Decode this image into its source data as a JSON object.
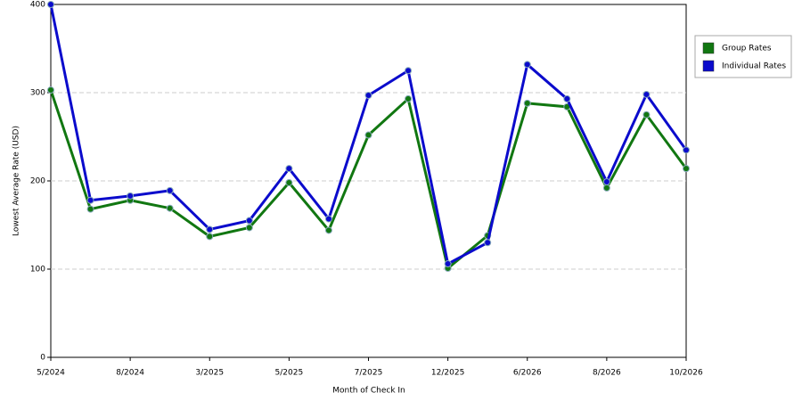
{
  "chart_data": {
    "type": "line",
    "x_label": "Month of Check In",
    "y_label": "Lowest Average Rate (USD)",
    "categories": [
      "5/2024",
      null,
      "8/2024",
      null,
      "3/2025",
      null,
      "5/2025",
      null,
      "7/2025",
      null,
      "12/2025",
      null,
      "6/2026",
      null,
      "8/2026",
      null,
      "10/2026"
    ],
    "series": [
      {
        "name": "Group Rates",
        "color": "#117711",
        "values": [
          303,
          168,
          178,
          169,
          137,
          147,
          198,
          144,
          252,
          293,
          101,
          138,
          288,
          284,
          192,
          275,
          214
        ]
      },
      {
        "name": "Individual Rates",
        "color": "#0b0bcc",
        "values": [
          400,
          178,
          183,
          189,
          145,
          155,
          214,
          157,
          297,
          325,
          106,
          130,
          332,
          293,
          199,
          298,
          235
        ]
      }
    ],
    "ylim": [
      0,
      400
    ],
    "yticks": [
      0,
      100,
      200,
      300,
      400
    ],
    "grid": true
  }
}
